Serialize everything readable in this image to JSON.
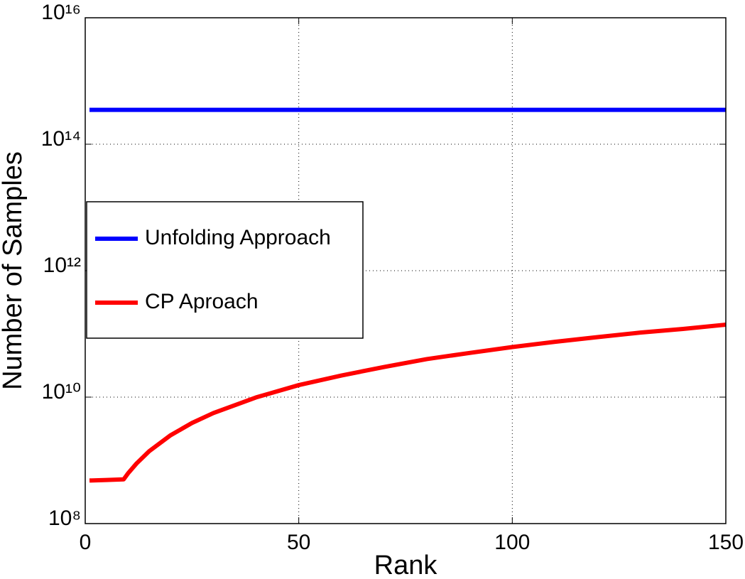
{
  "chart_data": {
    "type": "line",
    "xlabel": "Rank",
    "ylabel": "Number of Samples",
    "xlim": [
      0,
      150
    ],
    "xticks": [
      0,
      50,
      100,
      150
    ],
    "ylim": [
      100000000.0,
      1e+16
    ],
    "log_y": true,
    "yticks": [
      {
        "value": 100000000.0,
        "label": "10⁸"
      },
      {
        "value": 10000000000.0,
        "label": "10¹⁰"
      },
      {
        "value": 1000000000000.0,
        "label": "10¹²"
      },
      {
        "value": 100000000000000.0,
        "label": "10¹⁴"
      },
      {
        "value": 1e+16,
        "label": "10¹⁶"
      }
    ],
    "grid": true,
    "legend_position": "west",
    "series": [
      {
        "name": "Unfolding Approach",
        "color": "#0000ff",
        "x": [
          1,
          150
        ],
        "values": [
          350000000000000.0,
          350000000000000.0
        ]
      },
      {
        "name": "CP Aproach",
        "color": "#ff0000",
        "x": [
          1,
          5,
          9,
          10,
          12,
          15,
          20,
          25,
          30,
          40,
          50,
          60,
          70,
          80,
          90,
          100,
          110,
          120,
          130,
          140,
          150
        ],
        "values": [
          480000000.0,
          490000000.0,
          500000000.0,
          620000000.0,
          890000000.0,
          1400000000.0,
          2500000000.0,
          3900000000.0,
          5600000000.0,
          9900000000.0,
          15500000000.0,
          22000000000.0,
          30000000000.0,
          40000000000.0,
          50000000000.0,
          62000000000.0,
          75000000000.0,
          89000000000.0,
          105000000000.0,
          120000000000.0,
          140000000000.0
        ]
      }
    ]
  }
}
